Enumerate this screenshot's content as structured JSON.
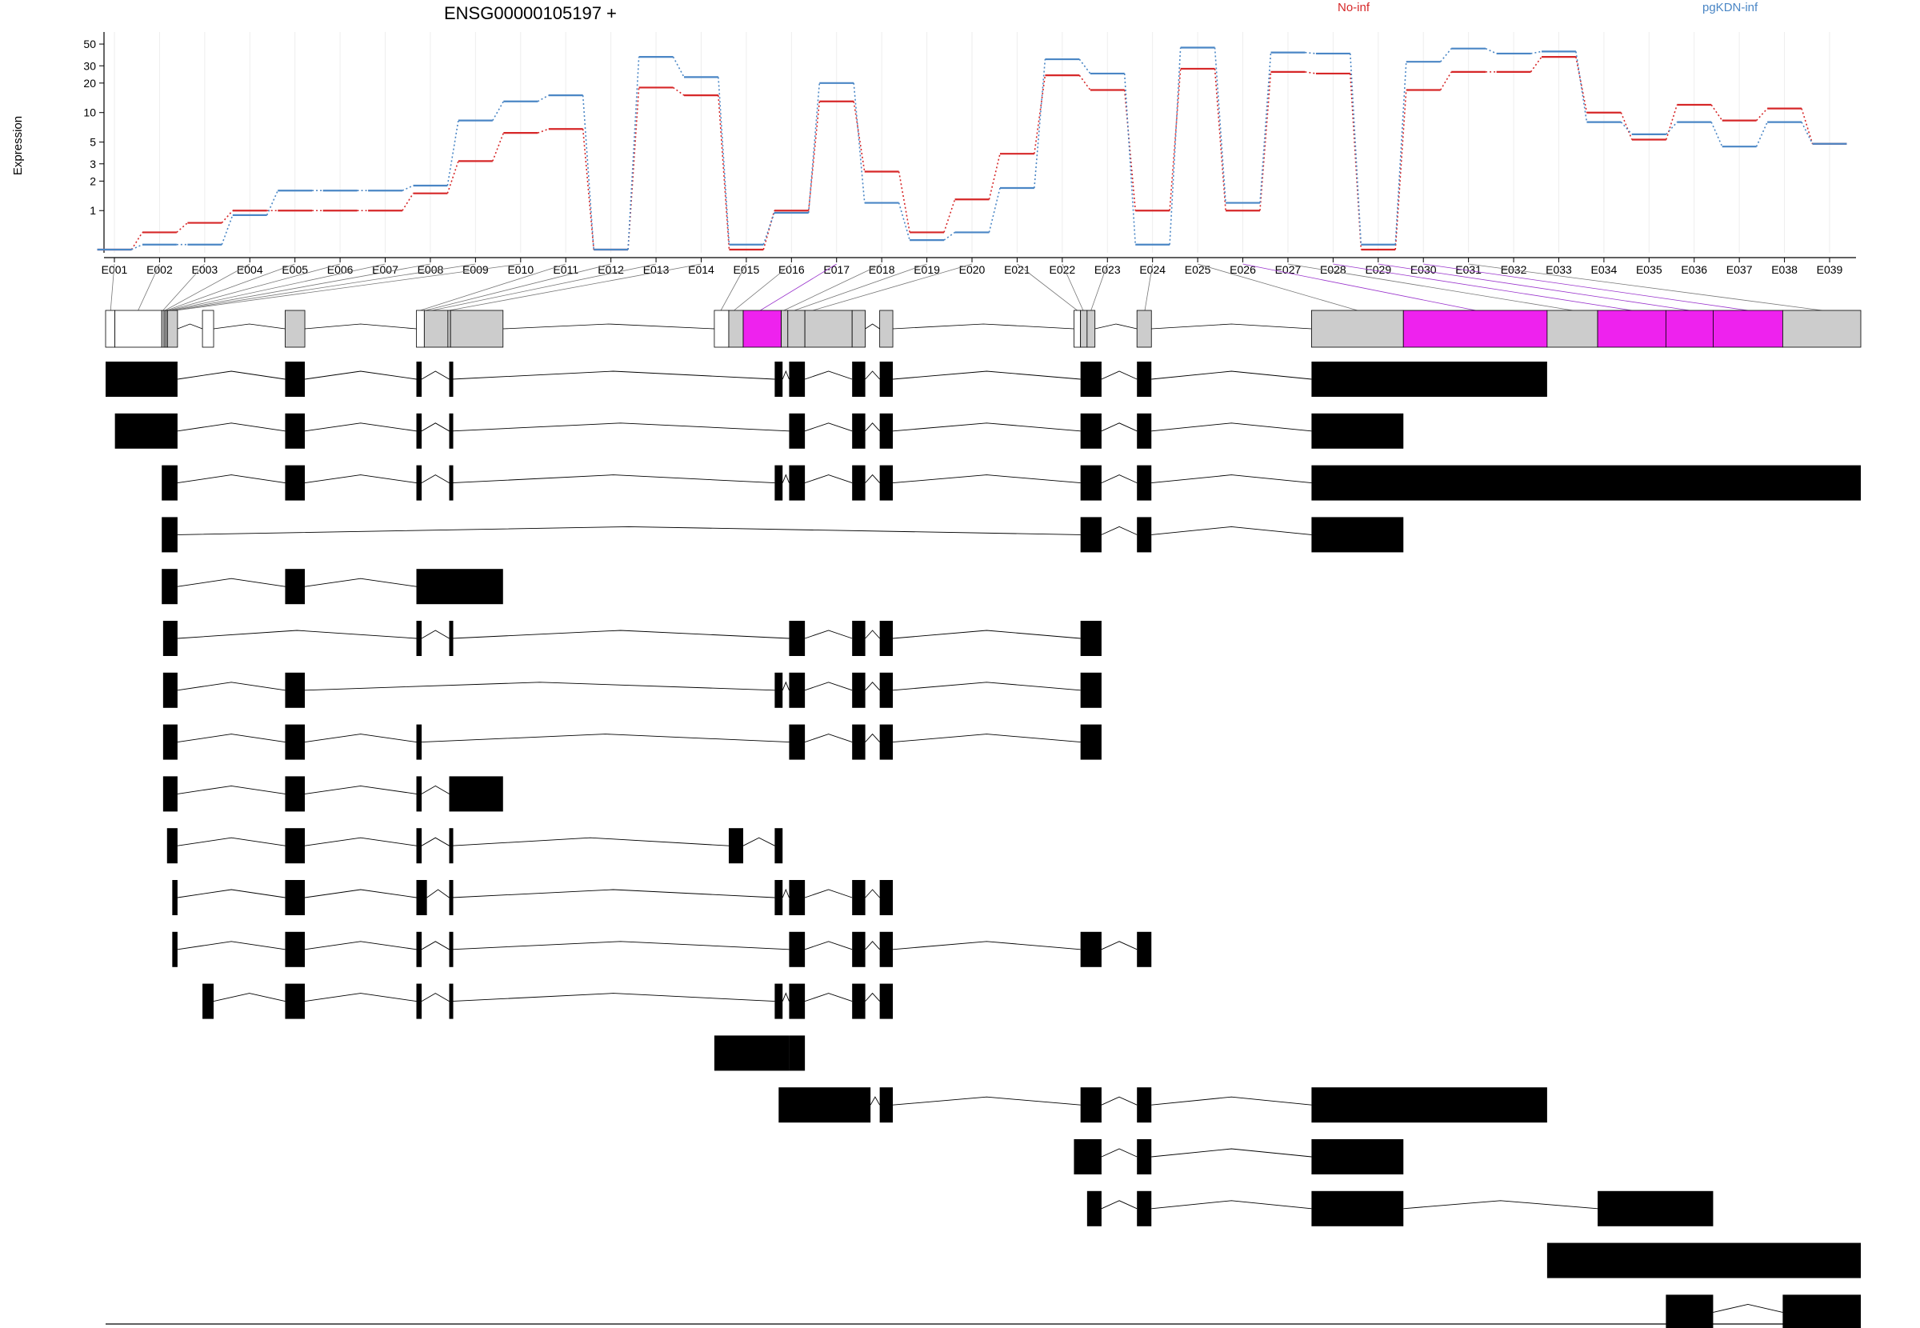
{
  "chart_data": {
    "type": "line",
    "title": "ENSG00000105197 +",
    "ylabel": "Expression",
    "xlabel": "",
    "y_scale": "log",
    "y_ticks": [
      1,
      2,
      3,
      5,
      10,
      20,
      30,
      50
    ],
    "ylim": [
      0.4,
      55
    ],
    "exons": [
      "E001",
      "E002",
      "E003",
      "E004",
      "E005",
      "E006",
      "E007",
      "E008",
      "E009",
      "E010",
      "E011",
      "E012",
      "E013",
      "E014",
      "E015",
      "E016",
      "E017",
      "E018",
      "E019",
      "E020",
      "E021",
      "E022",
      "E023",
      "E024",
      "E025",
      "E026",
      "E027",
      "E028",
      "E029",
      "E030",
      "E031",
      "E032",
      "E033",
      "E034",
      "E035",
      "E036",
      "E037",
      "E038",
      "E039"
    ],
    "series": [
      {
        "name": "No-inf",
        "color": "#d62728",
        "values": [
          0.4,
          0.6,
          0.75,
          1.0,
          1.0,
          1.0,
          1.0,
          1.5,
          3.2,
          6.2,
          6.8,
          0.4,
          18,
          15,
          0.4,
          1.0,
          13,
          2.5,
          0.6,
          1.3,
          3.8,
          24,
          17,
          1.0,
          28,
          1.0,
          26,
          25,
          0.4,
          17,
          26,
          26,
          37,
          10,
          5.3,
          12,
          8.3,
          11,
          4.8
        ]
      },
      {
        "name": "pgKDN-inf",
        "color": "#4a86c5",
        "values": [
          0.4,
          0.45,
          0.45,
          0.9,
          1.6,
          1.6,
          1.6,
          1.8,
          8.3,
          13,
          15,
          0.4,
          37,
          23,
          0.45,
          0.95,
          20,
          1.2,
          0.5,
          0.6,
          1.7,
          35,
          25,
          0.45,
          46,
          1.2,
          41,
          40,
          0.45,
          33,
          45,
          40,
          42,
          8,
          6,
          8,
          4.5,
          8,
          4.8
        ]
      }
    ],
    "gene_start": 39480412,
    "gene_end": 39493785,
    "coord_ticks": [
      39480412,
      39481898,
      39483384,
      39484870,
      39486356,
      39487841,
      39489327,
      39490813,
      39492299,
      39493785
    ],
    "gene_model": {
      "blocks": [
        {
          "s": 39480412,
          "e": 39480483,
          "fill": "white"
        },
        {
          "s": 39480483,
          "e": 39480840,
          "fill": "white"
        },
        {
          "s": 39480840,
          "e": 39480858,
          "fill": "gray"
        },
        {
          "s": 39480858,
          "e": 39480872,
          "fill": "gray"
        },
        {
          "s": 39480872,
          "e": 39480884,
          "fill": "gray"
        },
        {
          "s": 39480884,
          "e": 39480960,
          "fill": "gray"
        },
        {
          "s": 39481150,
          "e": 39481235,
          "fill": "white"
        },
        {
          "s": 39481780,
          "e": 39481930,
          "fill": "gray"
        },
        {
          "s": 39482780,
          "e": 39482840,
          "fill": "white"
        },
        {
          "s": 39482840,
          "e": 39483020,
          "fill": "gray"
        },
        {
          "s": 39483020,
          "e": 39483040,
          "fill": "gray"
        },
        {
          "s": 39483040,
          "e": 39483440,
          "fill": "gray"
        },
        {
          "s": 39485050,
          "e": 39485160,
          "fill": "white"
        },
        {
          "s": 39485160,
          "e": 39485270,
          "fill": "gray"
        },
        {
          "s": 39485270,
          "e": 39485560,
          "fill": "magenta"
        },
        {
          "s": 39485560,
          "e": 39485610,
          "fill": "gray"
        },
        {
          "s": 39485610,
          "e": 39485740,
          "fill": "gray"
        },
        {
          "s": 39485740,
          "e": 39486100,
          "fill": "gray"
        },
        {
          "s": 39486100,
          "e": 39486200,
          "fill": "gray"
        },
        {
          "s": 39486310,
          "e": 39486410,
          "fill": "gray"
        },
        {
          "s": 39487790,
          "e": 39487840,
          "fill": "white"
        },
        {
          "s": 39487840,
          "e": 39487890,
          "fill": "gray"
        },
        {
          "s": 39487890,
          "e": 39487950,
          "fill": "gray"
        },
        {
          "s": 39488270,
          "e": 39488380,
          "fill": "gray"
        },
        {
          "s": 39489600,
          "e": 39490300,
          "fill": "gray"
        },
        {
          "s": 39490300,
          "e": 39491395,
          "fill": "magenta"
        },
        {
          "s": 39491395,
          "e": 39491780,
          "fill": "gray"
        },
        {
          "s": 39491780,
          "e": 39492300,
          "fill": "magenta"
        },
        {
          "s": 39492300,
          "e": 39492660,
          "fill": "magenta"
        },
        {
          "s": 39492660,
          "e": 39493190,
          "fill": "magenta"
        },
        {
          "s": 39493190,
          "e": 39493785,
          "fill": "gray"
        }
      ],
      "links": [
        {
          "exon": 0,
          "g": 39480450,
          "hl": false
        },
        {
          "exon": 1,
          "g": 39480660,
          "hl": false
        },
        {
          "exon": 2,
          "g": 39480849,
          "hl": false
        },
        {
          "exon": 3,
          "g": 39480865,
          "hl": false
        },
        {
          "exon": 4,
          "g": 39480878,
          "hl": false
        },
        {
          "exon": 5,
          "g": 39480890,
          "hl": false
        },
        {
          "exon": 6,
          "g": 39480905,
          "hl": false
        },
        {
          "exon": 7,
          "g": 39480920,
          "hl": false
        },
        {
          "exon": 8,
          "g": 39480935,
          "hl": false
        },
        {
          "exon": 9,
          "g": 39480950,
          "hl": false
        },
        {
          "exon": 10,
          "g": 39482810,
          "hl": false
        },
        {
          "exon": 11,
          "g": 39482850,
          "hl": false
        },
        {
          "exon": 12,
          "g": 39482900,
          "hl": false
        },
        {
          "exon": 13,
          "g": 39483030,
          "hl": false
        },
        {
          "exon": 14,
          "g": 39485100,
          "hl": false
        },
        {
          "exon": 15,
          "g": 39485200,
          "hl": false
        },
        {
          "exon": 16,
          "g": 39485400,
          "hl": true
        },
        {
          "exon": 17,
          "g": 39485580,
          "hl": false
        },
        {
          "exon": 18,
          "g": 39485660,
          "hl": false
        },
        {
          "exon": 19,
          "g": 39485800,
          "hl": false
        },
        {
          "exon": 20,
          "g": 39487815,
          "hl": false
        },
        {
          "exon": 21,
          "g": 39487860,
          "hl": false
        },
        {
          "exon": 22,
          "g": 39487920,
          "hl": false
        },
        {
          "exon": 23,
          "g": 39488330,
          "hl": false
        },
        {
          "exon": 24,
          "g": 39489950,
          "hl": false
        },
        {
          "exon": 25,
          "g": 39490850,
          "hl": true
        },
        {
          "exon": 26,
          "g": 39491590,
          "hl": false
        },
        {
          "exon": 27,
          "g": 39492040,
          "hl": true
        },
        {
          "exon": 28,
          "g": 39492480,
          "hl": true
        },
        {
          "exon": 29,
          "g": 39492925,
          "hl": true
        },
        {
          "exon": 30,
          "g": 39493490,
          "hl": false
        }
      ]
    },
    "transcripts": [
      [
        [
          39480412,
          39480960
        ],
        [
          39481780,
          39481930
        ],
        [
          39482780,
          39482820
        ],
        [
          39483030,
          39483050
        ],
        [
          39485510,
          39485570
        ],
        [
          39485620,
          39485740
        ],
        [
          39486100,
          39486200
        ],
        [
          39486310,
          39486410
        ],
        [
          39487840,
          39488000
        ],
        [
          39488270,
          39488380
        ],
        [
          39489600,
          39491395
        ]
      ],
      [
        [
          39480483,
          39480960
        ],
        [
          39481780,
          39481930
        ],
        [
          39482780,
          39482820
        ],
        [
          39483030,
          39483050
        ],
        [
          39485620,
          39485740
        ],
        [
          39486100,
          39486200
        ],
        [
          39486310,
          39486410
        ],
        [
          39487840,
          39488000
        ],
        [
          39488270,
          39488380
        ],
        [
          39489600,
          39490300
        ]
      ],
      [
        [
          39480840,
          39480960
        ],
        [
          39481780,
          39481930
        ],
        [
          39482780,
          39482820
        ],
        [
          39483030,
          39483050
        ],
        [
          39485510,
          39485570
        ],
        [
          39485620,
          39485740
        ],
        [
          39486100,
          39486200
        ],
        [
          39486310,
          39486410
        ],
        [
          39487840,
          39488000
        ],
        [
          39488270,
          39488380
        ],
        [
          39489600,
          39493785
        ]
      ],
      [
        [
          39480840,
          39480960
        ],
        [
          39487840,
          39488000
        ],
        [
          39488270,
          39488380
        ],
        [
          39489600,
          39490300
        ]
      ],
      [
        [
          39480840,
          39480960
        ],
        [
          39481780,
          39481930
        ],
        [
          39482780,
          39483440
        ]
      ],
      [
        [
          39480850,
          39480960
        ],
        [
          39482780,
          39482820
        ],
        [
          39483030,
          39483050
        ],
        [
          39485620,
          39485740
        ],
        [
          39486100,
          39486200
        ],
        [
          39486310,
          39486410
        ],
        [
          39487840,
          39488000
        ]
      ],
      [
        [
          39480850,
          39480960
        ],
        [
          39481780,
          39481930
        ],
        [
          39485510,
          39485570
        ],
        [
          39485620,
          39485740
        ],
        [
          39486100,
          39486200
        ],
        [
          39486310,
          39486410
        ],
        [
          39487840,
          39488000
        ]
      ],
      [
        [
          39480850,
          39480960
        ],
        [
          39481780,
          39481930
        ],
        [
          39482780,
          39482820
        ],
        [
          39485620,
          39485740
        ],
        [
          39486100,
          39486200
        ],
        [
          39486310,
          39486410
        ],
        [
          39487840,
          39488000
        ]
      ],
      [
        [
          39480850,
          39480960
        ],
        [
          39481780,
          39481930
        ],
        [
          39482780,
          39482820
        ],
        [
          39483030,
          39483440
        ]
      ],
      [
        [
          39480880,
          39480960
        ],
        [
          39481780,
          39481930
        ],
        [
          39482780,
          39482820
        ],
        [
          39483030,
          39483050
        ],
        [
          39485160,
          39485270
        ],
        [
          39485510,
          39485570
        ]
      ],
      [
        [
          39480920,
          39480960
        ],
        [
          39481780,
          39481930
        ],
        [
          39482780,
          39482860
        ],
        [
          39483030,
          39483050
        ],
        [
          39485510,
          39485570
        ],
        [
          39485620,
          39485740
        ],
        [
          39486100,
          39486200
        ],
        [
          39486310,
          39486410
        ]
      ],
      [
        [
          39480920,
          39480960
        ],
        [
          39481780,
          39481930
        ],
        [
          39482780,
          39482820
        ],
        [
          39483030,
          39483050
        ],
        [
          39485620,
          39485740
        ],
        [
          39486100,
          39486200
        ],
        [
          39486310,
          39486410
        ],
        [
          39487840,
          39488000
        ],
        [
          39488270,
          39488380
        ]
      ],
      [
        [
          39481150,
          39481235
        ],
        [
          39481780,
          39481930
        ],
        [
          39482780,
          39482820
        ],
        [
          39483030,
          39483050
        ],
        [
          39485510,
          39485570
        ],
        [
          39485620,
          39485740
        ],
        [
          39486100,
          39486200
        ],
        [
          39486310,
          39486410
        ]
      ],
      [
        [
          39485050,
          39485620
        ],
        [
          39485620,
          39485740
        ]
      ],
      [
        [
          39485540,
          39486240
        ],
        [
          39486310,
          39486410
        ],
        [
          39487840,
          39488000
        ],
        [
          39488270,
          39488380
        ],
        [
          39489600,
          39491395
        ]
      ],
      [
        [
          39487790,
          39488000
        ],
        [
          39488270,
          39488380
        ],
        [
          39489600,
          39490300
        ]
      ],
      [
        [
          39487890,
          39488000
        ],
        [
          39488270,
          39488380
        ],
        [
          39489600,
          39490300
        ],
        [
          39491780,
          39492660
        ]
      ],
      [
        [
          39491395,
          39493785
        ]
      ],
      [
        [
          39492300,
          39492660
        ],
        [
          39493190,
          39493785
        ]
      ]
    ]
  }
}
